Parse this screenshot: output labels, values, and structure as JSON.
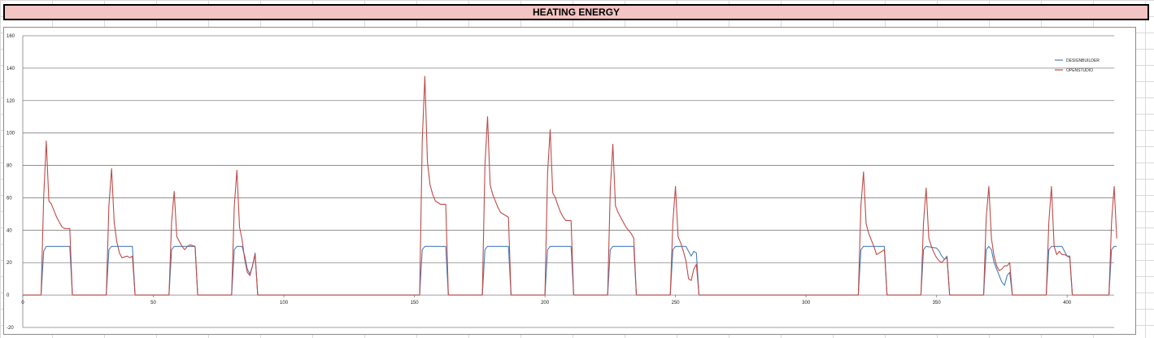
{
  "title": "HEATING ENERGY",
  "colors": {
    "title_bg": "#f2c4c4",
    "series_1": "#4a7ebb",
    "series_2": "#be4b48",
    "grid": "#808080"
  },
  "chart_data": {
    "type": "line",
    "title": "HEATING ENERGY",
    "xlabel": "",
    "ylabel": "",
    "xlim": [
      0,
      418
    ],
    "ylim": [
      -20,
      160
    ],
    "x_ticks": [
      0,
      50,
      100,
      150,
      200,
      250,
      300,
      350,
      400
    ],
    "y_ticks": [
      -20,
      0,
      20,
      40,
      60,
      80,
      100,
      120,
      140,
      160
    ],
    "grid": "horizontal",
    "legend_position": "top-right",
    "series": [
      {
        "name": "DESIGNBUILDER",
        "color": "#4a7ebb",
        "points": [
          [
            0,
            0
          ],
          [
            7,
            0
          ],
          [
            8,
            27
          ],
          [
            9,
            30
          ],
          [
            18,
            30
          ],
          [
            19,
            0
          ],
          [
            32,
            0
          ],
          [
            33,
            28
          ],
          [
            34,
            30
          ],
          [
            42,
            30
          ],
          [
            43,
            0
          ],
          [
            56,
            0
          ],
          [
            57,
            28
          ],
          [
            58,
            30
          ],
          [
            66,
            30
          ],
          [
            67,
            0
          ],
          [
            80,
            0
          ],
          [
            81,
            28
          ],
          [
            82,
            30
          ],
          [
            84,
            30
          ],
          [
            85,
            24
          ],
          [
            86,
            16
          ],
          [
            87,
            13
          ],
          [
            88,
            18
          ],
          [
            89,
            26
          ],
          [
            90,
            0
          ],
          [
            152,
            0
          ],
          [
            153,
            28
          ],
          [
            154,
            30
          ],
          [
            162,
            30
          ],
          [
            163,
            0
          ],
          [
            176,
            0
          ],
          [
            177,
            28
          ],
          [
            178,
            30
          ],
          [
            186,
            30
          ],
          [
            187,
            0
          ],
          [
            200,
            0
          ],
          [
            201,
            28
          ],
          [
            202,
            30
          ],
          [
            210,
            30
          ],
          [
            211,
            0
          ],
          [
            224,
            0
          ],
          [
            225,
            28
          ],
          [
            226,
            30
          ],
          [
            234,
            30
          ],
          [
            235,
            0
          ],
          [
            248,
            0
          ],
          [
            249,
            28
          ],
          [
            250,
            30
          ],
          [
            254,
            30
          ],
          [
            255,
            27
          ],
          [
            256,
            24
          ],
          [
            257,
            27
          ],
          [
            258,
            26
          ],
          [
            259,
            0
          ],
          [
            320,
            0
          ],
          [
            321,
            28
          ],
          [
            322,
            30
          ],
          [
            330,
            30
          ],
          [
            331,
            0
          ],
          [
            344,
            0
          ],
          [
            345,
            28
          ],
          [
            346,
            30
          ],
          [
            350,
            29
          ],
          [
            351,
            27
          ],
          [
            352,
            24
          ],
          [
            353,
            22
          ],
          [
            354,
            24
          ],
          [
            355,
            0
          ],
          [
            368,
            0
          ],
          [
            369,
            28
          ],
          [
            370,
            30
          ],
          [
            371,
            28
          ],
          [
            372,
            20
          ],
          [
            373,
            16
          ],
          [
            374,
            12
          ],
          [
            375,
            8
          ],
          [
            376,
            6
          ],
          [
            377,
            12
          ],
          [
            378,
            14
          ],
          [
            379,
            0
          ],
          [
            392,
            0
          ],
          [
            393,
            28
          ],
          [
            394,
            30
          ],
          [
            398,
            30
          ],
          [
            399,
            27
          ],
          [
            400,
            24
          ],
          [
            401,
            23
          ],
          [
            402,
            0
          ],
          [
            416,
            0
          ],
          [
            417,
            28
          ],
          [
            418,
            30
          ],
          [
            419,
            30
          ]
        ]
      },
      {
        "name": "OPENSTUDIO",
        "color": "#be4b48",
        "points": [
          [
            0,
            0
          ],
          [
            7,
            0
          ],
          [
            8,
            60
          ],
          [
            9,
            95
          ],
          [
            10,
            58
          ],
          [
            11,
            56
          ],
          [
            12,
            52
          ],
          [
            13,
            48
          ],
          [
            14,
            45
          ],
          [
            15,
            42
          ],
          [
            16,
            41
          ],
          [
            17,
            41
          ],
          [
            18,
            41
          ],
          [
            19,
            0
          ],
          [
            32,
            0
          ],
          [
            33,
            55
          ],
          [
            34,
            78
          ],
          [
            35,
            45
          ],
          [
            36,
            33
          ],
          [
            37,
            26
          ],
          [
            38,
            23
          ],
          [
            40,
            24
          ],
          [
            41,
            23
          ],
          [
            42,
            24
          ],
          [
            43,
            0
          ],
          [
            56,
            0
          ],
          [
            57,
            45
          ],
          [
            58,
            64
          ],
          [
            59,
            36
          ],
          [
            60,
            33
          ],
          [
            61,
            30
          ],
          [
            62,
            28
          ],
          [
            63,
            30
          ],
          [
            64,
            31
          ],
          [
            66,
            30
          ],
          [
            67,
            0
          ],
          [
            80,
            0
          ],
          [
            81,
            55
          ],
          [
            82,
            77
          ],
          [
            83,
            42
          ],
          [
            84,
            34
          ],
          [
            85,
            22
          ],
          [
            86,
            14
          ],
          [
            87,
            12
          ],
          [
            88,
            18
          ],
          [
            89,
            25
          ],
          [
            90,
            0
          ],
          [
            152,
            0
          ],
          [
            153,
            95
          ],
          [
            154,
            135
          ],
          [
            155,
            82
          ],
          [
            156,
            68
          ],
          [
            157,
            62
          ],
          [
            158,
            58
          ],
          [
            159,
            57
          ],
          [
            160,
            56
          ],
          [
            162,
            56
          ],
          [
            163,
            0
          ],
          [
            176,
            0
          ],
          [
            177,
            80
          ],
          [
            178,
            110
          ],
          [
            179,
            68
          ],
          [
            180,
            62
          ],
          [
            181,
            58
          ],
          [
            182,
            54
          ],
          [
            183,
            51
          ],
          [
            184,
            50
          ],
          [
            185,
            49
          ],
          [
            186,
            48
          ],
          [
            187,
            0
          ],
          [
            200,
            0
          ],
          [
            201,
            75
          ],
          [
            202,
            102
          ],
          [
            203,
            63
          ],
          [
            204,
            60
          ],
          [
            205,
            55
          ],
          [
            206,
            51
          ],
          [
            207,
            48
          ],
          [
            208,
            46
          ],
          [
            210,
            46
          ],
          [
            211,
            0
          ],
          [
            224,
            0
          ],
          [
            225,
            65
          ],
          [
            226,
            93
          ],
          [
            227,
            55
          ],
          [
            228,
            51
          ],
          [
            229,
            48
          ],
          [
            230,
            45
          ],
          [
            231,
            42
          ],
          [
            232,
            40
          ],
          [
            233,
            38
          ],
          [
            234,
            35
          ],
          [
            235,
            0
          ],
          [
            248,
            0
          ],
          [
            249,
            45
          ],
          [
            250,
            67
          ],
          [
            251,
            36
          ],
          [
            252,
            32
          ],
          [
            253,
            27
          ],
          [
            254,
            21
          ],
          [
            255,
            10
          ],
          [
            256,
            9
          ],
          [
            257,
            16
          ],
          [
            258,
            19
          ],
          [
            259,
            0
          ],
          [
            320,
            0
          ],
          [
            321,
            55
          ],
          [
            322,
            76
          ],
          [
            323,
            44
          ],
          [
            324,
            38
          ],
          [
            325,
            34
          ],
          [
            326,
            30
          ],
          [
            327,
            25
          ],
          [
            328,
            26
          ],
          [
            329,
            27
          ],
          [
            330,
            28
          ],
          [
            331,
            0
          ],
          [
            344,
            0
          ],
          [
            345,
            45
          ],
          [
            346,
            66
          ],
          [
            347,
            35
          ],
          [
            348,
            30
          ],
          [
            349,
            26
          ],
          [
            350,
            23
          ],
          [
            351,
            21
          ],
          [
            352,
            20
          ],
          [
            353,
            22
          ],
          [
            354,
            23
          ],
          [
            355,
            0
          ],
          [
            368,
            0
          ],
          [
            369,
            48
          ],
          [
            370,
            67
          ],
          [
            371,
            35
          ],
          [
            372,
            24
          ],
          [
            373,
            18
          ],
          [
            374,
            15
          ],
          [
            375,
            16
          ],
          [
            376,
            18
          ],
          [
            377,
            18
          ],
          [
            378,
            20
          ],
          [
            379,
            0
          ],
          [
            392,
            0
          ],
          [
            393,
            45
          ],
          [
            394,
            67
          ],
          [
            395,
            30
          ],
          [
            396,
            25
          ],
          [
            397,
            27
          ],
          [
            398,
            25
          ],
          [
            399,
            25
          ],
          [
            400,
            24
          ],
          [
            401,
            24
          ],
          [
            402,
            0
          ],
          [
            416,
            0
          ],
          [
            417,
            45
          ],
          [
            418,
            67
          ],
          [
            419,
            35
          ]
        ]
      }
    ]
  }
}
